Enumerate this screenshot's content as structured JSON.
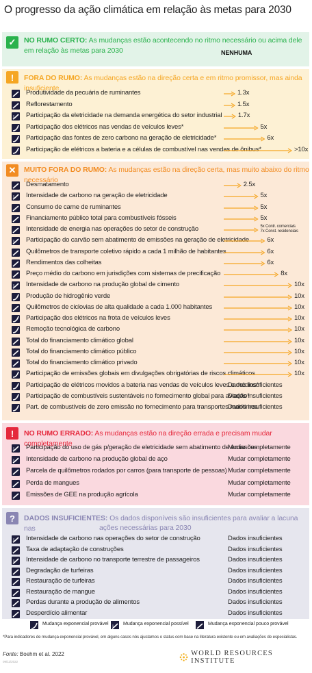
{
  "title": "O progresso da ação climática em relação às metas para 2030",
  "colors": {
    "green": "#2ab24d",
    "yellow": "#f5a623",
    "orange": "#f28c22",
    "red": "#e5283c",
    "gray": "#8a86b3",
    "arrow": "#f5a623",
    "icon": "#1d1d3c"
  },
  "sections": {
    "green": {
      "badge": "✓",
      "label": "NO RUMO CERTO:",
      "desc": "As mudanças estão acontecendo no ritmo necessário ou acima dele",
      "desc2": "em relação às metas para 2030",
      "value": "NENHUMA"
    },
    "yellow": {
      "badge": "!",
      "label": "FORA DO RUMO:",
      "desc": "As mudanças estão na direção certa e em ritmo promissor, mas ainda insuficiente",
      "rows": [
        {
          "icon": "mudanca-pouco-provavel",
          "label": "Produtividade da pecuária de ruminantes",
          "value": "1.3x",
          "multiplier": 1.3
        },
        {
          "icon": "mudanca-pouco-provavel",
          "label": "Reflorestamento",
          "value": "1.5x",
          "multiplier": 1.5
        },
        {
          "icon": "mudanca-possivel",
          "label": "Participação da eletricidade na demanda energética do setor industrial",
          "value": "1.7x",
          "multiplier": 1.7
        },
        {
          "icon": "mudanca-provavel",
          "label": "Participação dos elétricos nas vendas de veículos leves*",
          "value": "5x",
          "multiplier": 5
        },
        {
          "icon": "mudanca-provavel",
          "label": "Participação das fontes de zero carbono na geração de eletricidade*",
          "value": "6x",
          "multiplier": 6
        },
        {
          "icon": "mudanca-provavel",
          "label": "Participação de elétricos a bateria e a células de combustível nas vendas de ônibus*",
          "value": ">10x",
          "multiplier": 10
        }
      ]
    },
    "orange": {
      "badge": "✕",
      "label": "MUITO FORA DO RUMO:",
      "desc": "As mudanças estão na direção certa, mas muito abaixo do ritmo necessário",
      "rows": [
        {
          "icon": "mudanca-pouco-provavel",
          "label": "Desmatamento",
          "value": "2.5x",
          "multiplier": 2.5
        },
        {
          "icon": "mudanca-possivel",
          "label": "Intensidade de carbono na geração de eletricidade",
          "value": "5x",
          "multiplier": 5
        },
        {
          "icon": "mudanca-pouco-provavel",
          "label": "Consumo de carne de ruminantes",
          "value": "5x",
          "multiplier": 5
        },
        {
          "icon": "mudanca-pouco-provavel",
          "label": "Financiamento público total para combustíveis fósseis",
          "value": "5x",
          "multiplier": 5
        },
        {
          "icon": "mudanca-pouco-provavel",
          "label": "Intensidade de energia nas operações do setor de construção",
          "value": "5x Contr. comerciais",
          "value2": "7x Const. residenciais",
          "multiplier": 5
        },
        {
          "icon": "mudanca-possivel",
          "label": "Participação do carvão sem abatimento de emissões na geração de eletricidade",
          "value": "6x",
          "multiplier": 6
        },
        {
          "icon": "mudanca-pouco-provavel",
          "label": "Quilômetros de transporte coletivo rápido a cada 1 milhão de habitantes",
          "value": "6x",
          "multiplier": 6
        },
        {
          "icon": "mudanca-pouco-provavel",
          "label": "Rendimentos das colheitas",
          "value": "6x",
          "multiplier": 6
        },
        {
          "icon": "mudanca-pouco-provavel",
          "label": "Preço médio do carbono em jurisdições com sistemas de precificação",
          "value": "8x",
          "multiplier": 8
        },
        {
          "icon": "mudanca-possivel",
          "label": "Intensidade de carbono na produção global de cimento",
          "value": "10x",
          "multiplier": 10
        },
        {
          "icon": "mudanca-provavel",
          "label": "Produção de hidrogênio verde",
          "value": "10x",
          "multiplier": 10
        },
        {
          "icon": "mudanca-pouco-provavel",
          "label": "Quilômetros de ciclovias de alta qualidade a cada 1.000 habitantes",
          "value": "10x",
          "multiplier": 10
        },
        {
          "icon": "mudanca-provavel",
          "label": "Participação dos elétricos na frota de veículos leves",
          "value": "10x",
          "multiplier": 10
        },
        {
          "icon": "mudanca-provavel",
          "label": "Remoção tecnológica de carbono",
          "value": "10x",
          "multiplier": 10
        },
        {
          "icon": "mudanca-pouco-provavel",
          "label": "Total do financiamento climático global",
          "value": "10x",
          "multiplier": 10
        },
        {
          "icon": "mudanca-pouco-provavel",
          "label": "Total do financiamento climático público",
          "value": "10x",
          "multiplier": 10
        },
        {
          "icon": "mudanca-pouco-provavel",
          "label": "Total do financiamento climático privado",
          "value": "10x",
          "multiplier": 10
        },
        {
          "icon": "mudanca-provavel",
          "label": "Participação de emissões globais em divulgações obrigatórias de riscos climáticos",
          "value": "10x",
          "multiplier": 10
        },
        {
          "icon": "mudanca-provavel",
          "label": "Participação de elétricos movidos a bateria nas vendas de veículos leves e médios*",
          "value": "Dados insuficientes",
          "multiplier": null
        },
        {
          "icon": "mudanca-provavel",
          "label": "Participação de combustíveis sustentáveis no fornecimento global para aviação*",
          "value": "Dados insuficientes",
          "multiplier": null
        },
        {
          "icon": "mudanca-provavel",
          "label": "Part. de combustíveis de zero emissão no fornecimento para transportes marítimos",
          "value": "Dados insuficientes",
          "multiplier": null
        }
      ]
    },
    "red": {
      "badge": "!",
      "label": "NO RUMO ERRADO:",
      "desc": "As mudanças estão na direção errada e precisam mudar completamente",
      "rows": [
        {
          "icon": "mudanca-possivel",
          "label": "Participação do uso de gás p/geração de eletricidade sem abatimento de emissões",
          "value": "Mudar completamente"
        },
        {
          "icon": "mudanca-possivel",
          "label": "Intensidade de carbono na produção global de aço",
          "value": "Mudar completamente"
        },
        {
          "icon": "mudanca-pouco-provavel",
          "label": "Parcela de quilômetros rodados por carros (para transporte de pessoas)",
          "value": "Mudar completamente"
        },
        {
          "icon": "mudanca-pouco-provavel",
          "label": "Perda de mangues",
          "value": "Mudar completamente"
        },
        {
          "icon": "mudanca-pouco-provavel",
          "label": "Emissões de GEE na produção agrícola",
          "value": "Mudar completamente"
        }
      ]
    },
    "gray": {
      "badge": "?",
      "label": "DADOS INSUFICIENTES:",
      "desc": "Os dados disponíveis são insuficientes para avaliar a lacuna nas",
      "desc2": "ações necessárias para 2030",
      "rows": [
        {
          "icon": "mudanca-possivel",
          "label": "Intensidade de carbono nas operações do setor de construção",
          "value": "Dados insuficientes"
        },
        {
          "icon": "mudanca-pouco-provavel",
          "label": "Taxa de adaptação de construções",
          "value": "Dados insuficientes"
        },
        {
          "icon": "mudanca-possivel",
          "label": "Intensidade de carbono no transporte terrestre de passageiros",
          "value": "Dados insuficientes"
        },
        {
          "icon": "mudanca-pouco-provavel",
          "label": "Degradação de turfeiras",
          "value": "Dados insuficientes"
        },
        {
          "icon": "mudanca-pouco-provavel",
          "label": "Restauração de turfeiras",
          "value": "Dados insuficientes"
        },
        {
          "icon": "mudanca-pouco-provavel",
          "label": "Restauração de mangue",
          "value": "Dados insuficientes"
        },
        {
          "icon": "mudanca-pouco-provavel",
          "label": "Perdas durante a produção de alimentos",
          "value": "Dados insuficientes"
        },
        {
          "icon": "mudanca-pouco-provavel",
          "label": "Desperdício alimentar",
          "value": "Dados insuficientes"
        }
      ]
    }
  },
  "legend": [
    {
      "icon": "mudanca-provavel",
      "label": "Mudança exponencial provável"
    },
    {
      "icon": "mudanca-possivel",
      "label": "Mudança exponencial possível"
    },
    {
      "icon": "mudanca-pouco-provavel",
      "label": "Mudança exponencial pouco provável"
    }
  ],
  "footnote": "*Para indicadores de mudança exponencial provável, em alguns casos nós ajustamos o status com base na literatura existente ou em avaliações de especialistas.",
  "source_prefix": "Fonte:",
  "source": "Boehm et al. 2022",
  "date": "09/11/2022",
  "logo_text": "WORLD RESOURCES INSTITUTE",
  "chart_data": {
    "type": "bar",
    "title": "O progresso da ação climática em relação às metas para 2030",
    "xlabel": "",
    "ylabel": "",
    "categories": [
      "Produtividade da pecuária de ruminantes",
      "Reflorestamento",
      "Participação da eletricidade na demanda energética do setor industrial",
      "Participação dos elétricos nas vendas de veículos leves*",
      "Participação das fontes de zero carbono na geração de eletricidade*",
      "Participação de elétricos a bateria e a células de combustível nas vendas de ônibus*",
      "Desmatamento",
      "Intensidade de carbono na geração de eletricidade",
      "Consumo de carne de ruminantes",
      "Financiamento público total para combustíveis fósseis",
      "Intensidade de energia nas operações do setor de construção",
      "Participação do carvão sem abatimento de emissões na geração de eletricidade",
      "Quilômetros de transporte coletivo rápido a cada 1 milhão de habitantes",
      "Rendimentos das colheitas",
      "Preço médio do carbono em jurisdições com sistemas de precificação",
      "Intensidade de carbono na produção global de cimento",
      "Produção de hidrogênio verde",
      "Quilômetros de ciclovias de alta qualidade a cada 1.000 habitantes",
      "Participação dos elétricos na frota de veículos leves",
      "Remoção tecnológica de carbono",
      "Total do financiamento climático global",
      "Total do financiamento climático público",
      "Total do financiamento climático privado",
      "Participação de emissões globais em divulgações obrigatórias de riscos climáticos"
    ],
    "values": [
      1.3,
      1.5,
      1.7,
      5,
      6,
      10,
      2.5,
      5,
      5,
      5,
      5,
      6,
      6,
      6,
      8,
      10,
      10,
      10,
      10,
      10,
      10,
      10,
      10,
      10
    ]
  }
}
